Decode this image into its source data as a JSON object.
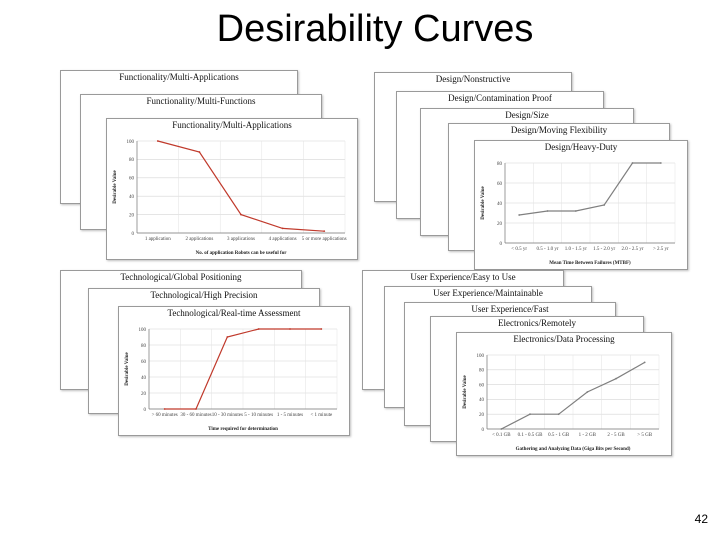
{
  "slide": {
    "title": "Desirability Curves",
    "page_number": "42"
  },
  "groups": [
    {
      "cards": [
        {
          "title": "Functionality/Multi-Applications"
        },
        {
          "title": "Functionality/Multi-Functions"
        },
        {
          "title": "Functionality/Multi-Applications"
        }
      ]
    },
    {
      "cards": [
        {
          "title": "Design/Nonstructive"
        },
        {
          "title": "Design/Contamination Proof"
        },
        {
          "title": "Design/Size"
        },
        {
          "title": "Design/Moving Flexibility"
        },
        {
          "title": "Design/Heavy-Duty"
        }
      ]
    },
    {
      "cards": [
        {
          "title": "Technological/Global Positioning"
        },
        {
          "title": "Technological/High Precision"
        },
        {
          "title": "Technological/Real-time Assessment"
        }
      ]
    },
    {
      "cards": [
        {
          "title": "User Experience/Easy to Use"
        },
        {
          "title": "User Experience/Maintainable"
        },
        {
          "title": "User Experience/Fast"
        },
        {
          "title": "Electronics/Remotely"
        },
        {
          "title": "Electronics/Data Processing"
        }
      ]
    }
  ],
  "chart_data": [
    {
      "type": "line",
      "title": "Functionality/Multi-Applications",
      "ylabel": "Desirable Value",
      "xlabel": "No. of application Robots can be useful for",
      "categories": [
        "1 application",
        "2 applications",
        "3 applications",
        "4 applications",
        "5 or more applications"
      ],
      "yticks": [
        "0",
        "20",
        "40",
        "60",
        "80",
        "100"
      ],
      "ylim": [
        0,
        100
      ],
      "values": [
        100,
        88,
        20,
        5,
        2
      ],
      "color": "#c0392b"
    },
    {
      "type": "line",
      "title": "Design/Heavy-Duty",
      "ylabel": "Desirable Value",
      "xlabel": "Mean Time Between Failures (MTBF)",
      "categories": [
        "< 0.5 yr",
        "0.5 - 1.0 yr",
        "1.0 - 1.5 yr",
        "1.5 - 2.0 yr",
        "2.0 - 2.5 yr",
        "> 2.5 yr"
      ],
      "yticks": [
        "0",
        "20",
        "40",
        "60",
        "80"
      ],
      "ylim": [
        0,
        80
      ],
      "values": [
        28,
        32,
        32,
        38,
        80,
        80
      ],
      "color": "#7f7f7f"
    },
    {
      "type": "line",
      "title": "Technological/Real-time Assessment",
      "ylabel": "Desirable Value",
      "xlabel": "Time required for determination",
      "categories": [
        "> 60 minutes",
        "30 - 60 minutes",
        "10 - 30 minutes",
        "5 - 10 minutes",
        "1 - 5 minutes",
        "< 1 minute"
      ],
      "yticks": [
        "0",
        "20",
        "40",
        "60",
        "80",
        "100"
      ],
      "ylim": [
        0,
        100
      ],
      "values": [
        0,
        0,
        90,
        100,
        100,
        100
      ],
      "color": "#c0392b"
    },
    {
      "type": "line",
      "title": "Electronics/Data Processing",
      "ylabel": "Desirable Value",
      "xlabel": "Gathering and Analyzing Data (Giga Bits per Second)",
      "categories": [
        "< 0.1 GB",
        "0.1 - 0.5 GB",
        "0.5 - 1 GB",
        "1 - 2 GB",
        "2 - 5 GB",
        "> 5 GB"
      ],
      "yticks": [
        "0",
        "20",
        "40",
        "60",
        "80",
        "100"
      ],
      "ylim": [
        0,
        100
      ],
      "values": [
        0,
        20,
        20,
        50,
        68,
        90
      ],
      "color": "#7f7f7f"
    }
  ]
}
